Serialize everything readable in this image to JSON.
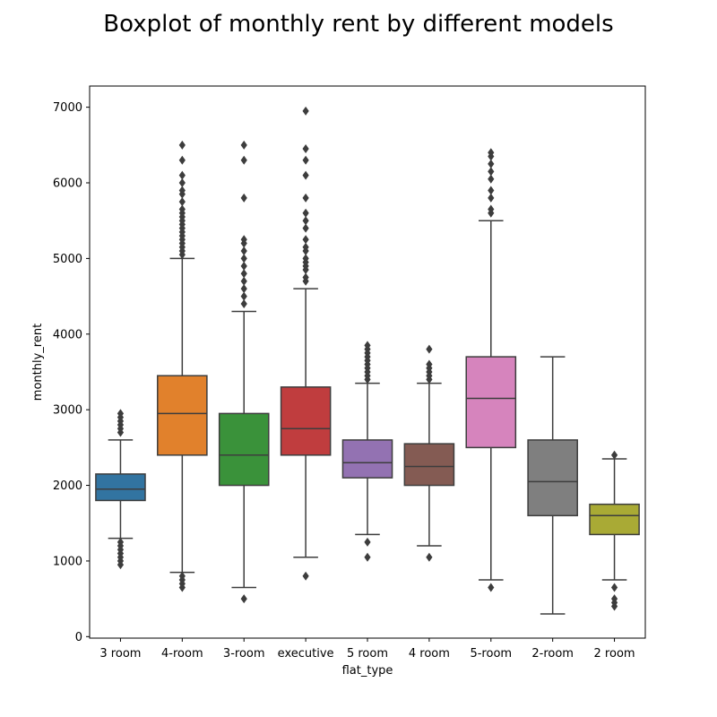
{
  "chart_data": {
    "type": "boxplot",
    "title": "Boxplot of monthly rent by different models",
    "xlabel": "flat_type",
    "ylabel": "monthly_rent",
    "ylim": [
      -20,
      7280
    ],
    "yticks": [
      0,
      1000,
      2000,
      3000,
      4000,
      5000,
      6000,
      7000
    ],
    "grid": false,
    "categories": [
      "3 room",
      "4-room",
      "3-room",
      "executive",
      "5 room",
      "4 room",
      "5-room",
      "2-room",
      "2 room"
    ],
    "colors": [
      "#3274a1",
      "#e1812c",
      "#3a923a",
      "#c03d3e",
      "#9372b2",
      "#845b53",
      "#d684bd",
      "#7f7f7f",
      "#a9aa35"
    ],
    "boxes": [
      {
        "whisker_low": 1300,
        "q1": 1800,
        "median": 1950,
        "q3": 2150,
        "whisker_high": 2600,
        "outliers": [
          950,
          1000,
          1050,
          1100,
          1150,
          1200,
          1250,
          2700,
          2750,
          2800,
          2850,
          2900,
          2950
        ]
      },
      {
        "whisker_low": 850,
        "q1": 2400,
        "median": 2950,
        "q3": 3450,
        "whisker_high": 5000,
        "outliers": [
          650,
          700,
          750,
          800,
          5050,
          5100,
          5150,
          5200,
          5250,
          5300,
          5350,
          5400,
          5450,
          5500,
          5550,
          5600,
          5650,
          5750,
          5850,
          5900,
          6000,
          6100,
          6300,
          6500
        ]
      },
      {
        "whisker_low": 650,
        "q1": 2000,
        "median": 2400,
        "q3": 2950,
        "whisker_high": 4300,
        "outliers": [
          500,
          4400,
          4500,
          4600,
          4700,
          4800,
          4900,
          5000,
          5100,
          5200,
          5250,
          5800,
          6300,
          6500
        ]
      },
      {
        "whisker_low": 1050,
        "q1": 2400,
        "median": 2750,
        "q3": 3300,
        "whisker_high": 4600,
        "outliers": [
          800,
          4700,
          4750,
          4850,
          4900,
          4950,
          5000,
          5100,
          5150,
          5250,
          5400,
          5500,
          5600,
          5800,
          6100,
          6300,
          6450,
          6950
        ]
      },
      {
        "whisker_low": 1350,
        "q1": 2100,
        "median": 2300,
        "q3": 2600,
        "whisker_high": 3350,
        "outliers": [
          1050,
          1250,
          3400,
          3450,
          3500,
          3550,
          3600,
          3650,
          3700,
          3750,
          3800,
          3850
        ]
      },
      {
        "whisker_low": 1200,
        "q1": 2000,
        "median": 2250,
        "q3": 2550,
        "whisker_high": 3350,
        "outliers": [
          1050,
          3400,
          3450,
          3500,
          3550,
          3600,
          3800
        ]
      },
      {
        "whisker_low": 750,
        "q1": 2500,
        "median": 3150,
        "q3": 3700,
        "whisker_high": 5500,
        "outliers": [
          650,
          5600,
          5650,
          5800,
          5900,
          6050,
          6150,
          6250,
          6350,
          6400
        ]
      },
      {
        "whisker_low": 300,
        "q1": 1600,
        "median": 2050,
        "q3": 2600,
        "whisker_high": 3700,
        "outliers": []
      },
      {
        "whisker_low": 750,
        "q1": 1350,
        "median": 1600,
        "q3": 1750,
        "whisker_high": 2350,
        "outliers": [
          400,
          450,
          500,
          650,
          2400
        ]
      }
    ]
  }
}
